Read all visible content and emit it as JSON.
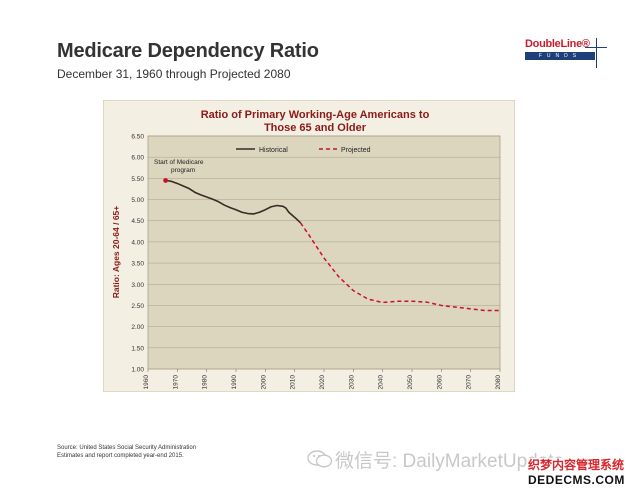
{
  "slide": {
    "title": "Medicare Dependency Ratio",
    "subtitle": "December 31, 1960 through Projected 2080"
  },
  "logo": {
    "name": "DoubleLine",
    "registered": "®",
    "tagline": "FUNDS"
  },
  "footnote": {
    "line1": "Source:  United States Social Security Administration",
    "line2": "Estimates and report completed year-end 2015."
  },
  "watermark": {
    "text": "微信号: DailyMarketUpdate"
  },
  "site_badge": {
    "line1": "织梦内容管理系统",
    "line2": "DEDECMS.COM"
  },
  "colors": {
    "plot_background": "#ddd6bf",
    "chart_background": "#f3efe2",
    "title_color": "#8b1a1a",
    "historical_line": "#3b2a24",
    "projected_line": "#c8102e",
    "medicare_marker": "#c8102e"
  },
  "chart_data": {
    "type": "line",
    "title_line1": "Ratio of Primary Working-Age Americans to",
    "title_line2": "Those 65 and Older",
    "xlabel": "",
    "ylabel": "Ratio: Ages 20-64 / 65+",
    "xlim": [
      1960,
      2080
    ],
    "ylim": [
      1.0,
      6.5
    ],
    "x_ticks": [
      "1960",
      "1970",
      "1980",
      "1990",
      "2000",
      "2010",
      "2020",
      "2030",
      "2040",
      "2050",
      "2060",
      "2070",
      "2080"
    ],
    "y_ticks": [
      "6.50",
      "6.00",
      "5.50",
      "5.00",
      "4.50",
      "4.00",
      "3.50",
      "3.00",
      "2.50",
      "2.00",
      "1.50",
      "1.00"
    ],
    "grid": "horizontal",
    "legend_position": "top",
    "series": [
      {
        "name": "Historical",
        "style": "solid",
        "points": [
          [
            1966,
            5.45
          ],
          [
            1968,
            5.43
          ],
          [
            1970,
            5.38
          ],
          [
            1972,
            5.32
          ],
          [
            1974,
            5.26
          ],
          [
            1976,
            5.17
          ],
          [
            1978,
            5.11
          ],
          [
            1980,
            5.06
          ],
          [
            1982,
            5.01
          ],
          [
            1984,
            4.95
          ],
          [
            1986,
            4.87
          ],
          [
            1988,
            4.81
          ],
          [
            1990,
            4.76
          ],
          [
            1992,
            4.7
          ],
          [
            1994,
            4.67
          ],
          [
            1996,
            4.66
          ],
          [
            1998,
            4.7
          ],
          [
            2000,
            4.76
          ],
          [
            2002,
            4.83
          ],
          [
            2004,
            4.86
          ],
          [
            2006,
            4.84
          ],
          [
            2007,
            4.8
          ],
          [
            2008,
            4.7
          ],
          [
            2010,
            4.58
          ],
          [
            2012,
            4.45
          ]
        ]
      },
      {
        "name": "Projected",
        "style": "dashed",
        "points": [
          [
            2012,
            4.45
          ],
          [
            2015,
            4.15
          ],
          [
            2020,
            3.62
          ],
          [
            2025,
            3.18
          ],
          [
            2030,
            2.85
          ],
          [
            2035,
            2.65
          ],
          [
            2040,
            2.57
          ],
          [
            2045,
            2.6
          ],
          [
            2050,
            2.6
          ],
          [
            2055,
            2.58
          ],
          [
            2060,
            2.5
          ],
          [
            2065,
            2.46
          ],
          [
            2070,
            2.42
          ],
          [
            2075,
            2.38
          ],
          [
            2080,
            2.38
          ]
        ]
      }
    ],
    "annotation": {
      "text_line1": "Start of Medicare",
      "text_line2": "program",
      "x": 1966,
      "y": 5.45
    }
  }
}
